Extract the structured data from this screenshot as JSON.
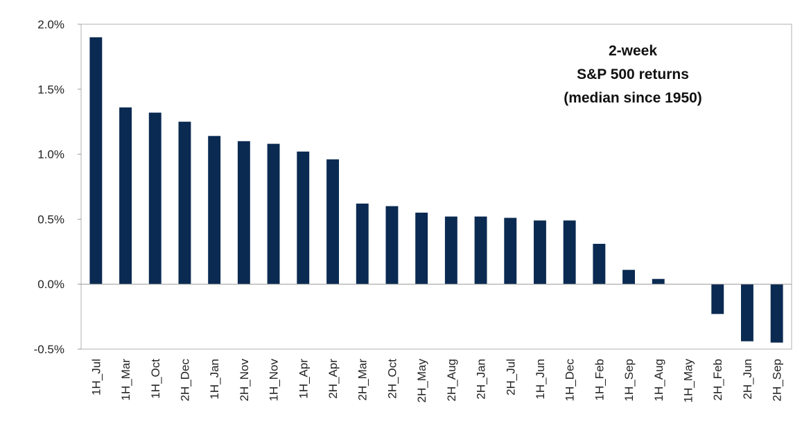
{
  "chart_data": {
    "type": "bar",
    "title_lines": [
      "2-week",
      "S&P 500 returns",
      "(median since 1950)"
    ],
    "categories": [
      "1H_Jul",
      "1H_Mar",
      "1H_Oct",
      "2H_Dec",
      "1H_Jan",
      "2H_Nov",
      "1H_Nov",
      "1H_Apr",
      "2H_Apr",
      "2H_Mar",
      "2H_Oct",
      "2H_May",
      "2H_Aug",
      "2H_Jan",
      "2H_Jul",
      "1H_Jun",
      "1H_Dec",
      "1H_Feb",
      "1H_Sep",
      "1H_Aug",
      "1H_May",
      "2H_Feb",
      "2H_Jun",
      "2H_Sep"
    ],
    "values": [
      1.9,
      1.36,
      1.32,
      1.25,
      1.14,
      1.1,
      1.08,
      1.02,
      0.96,
      0.62,
      0.6,
      0.55,
      0.52,
      0.52,
      0.51,
      0.49,
      0.49,
      0.31,
      0.11,
      0.04,
      0.0,
      -0.23,
      -0.44,
      -0.45
    ],
    "ylim": [
      -0.5,
      2.0
    ],
    "yticks": [
      2.0,
      1.5,
      1.0,
      0.5,
      0.0,
      -0.5
    ],
    "ytick_labels": [
      "2.0%",
      "1.5%",
      "1.0%",
      "0.5%",
      "0.0%",
      "-0.5%"
    ],
    "bar_color": "#0a2a52",
    "grid": false,
    "legend": "none"
  }
}
